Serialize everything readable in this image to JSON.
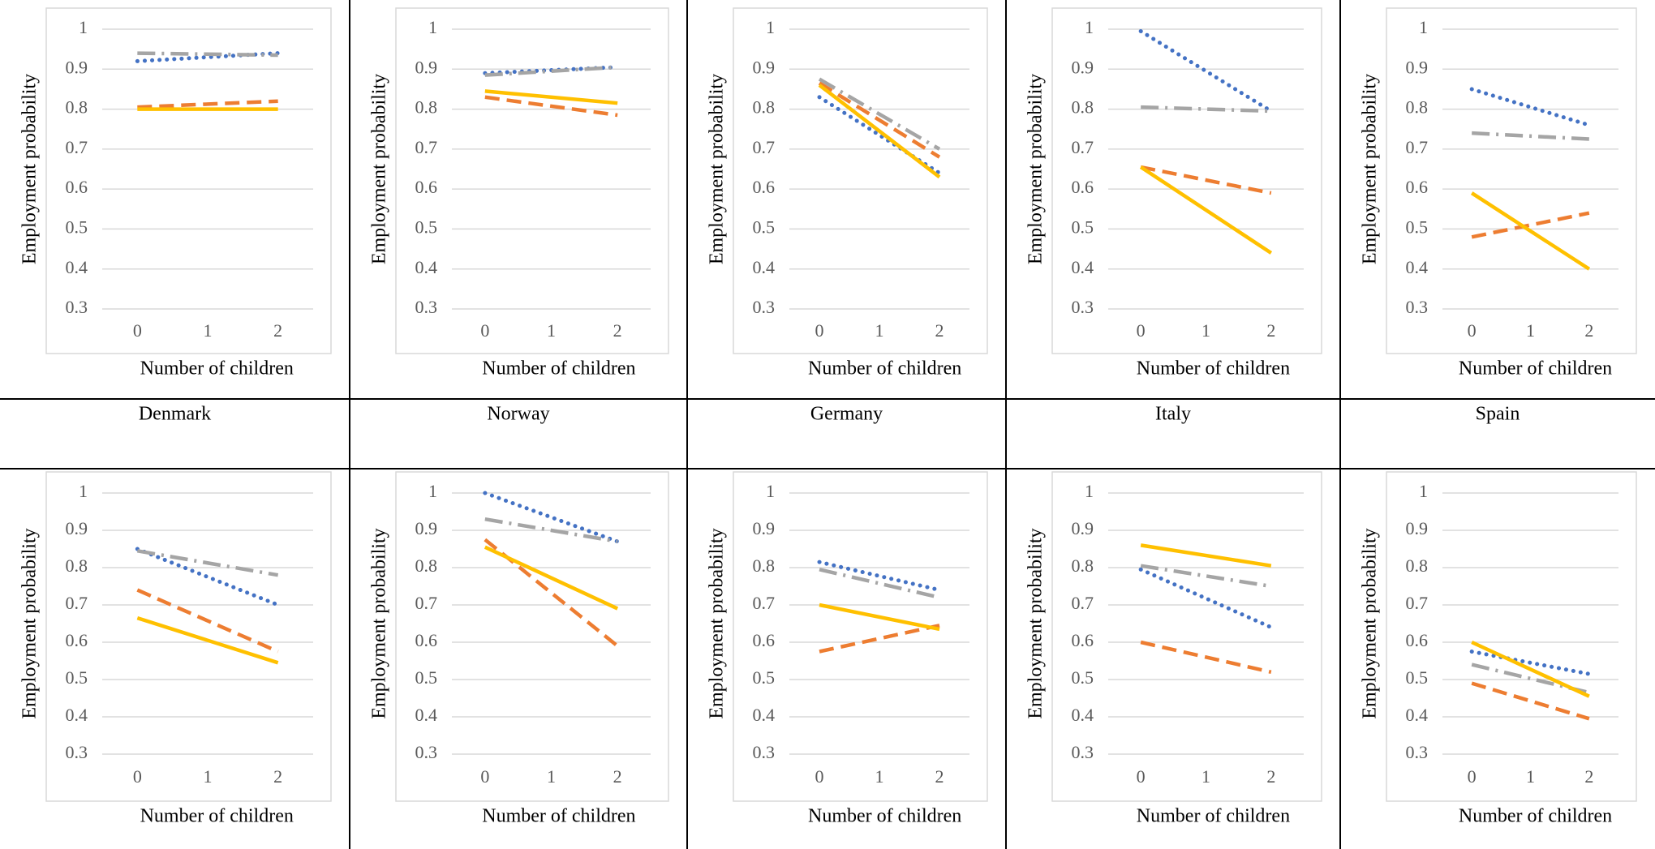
{
  "chart_data": [
    {
      "type": "line",
      "caption": "Denmark",
      "ylabel": "Employment probability",
      "xlabel": "Number of children",
      "x": [
        0,
        2
      ],
      "xlim": [
        -0.5,
        2.5
      ],
      "xticks": [
        0,
        1,
        2
      ],
      "ylim": [
        0.3,
        1
      ],
      "yticks": [
        0.3,
        0.4,
        0.5,
        0.6,
        0.7,
        0.8,
        0.9,
        1
      ],
      "grid": true,
      "series": [
        {
          "color": "#4472c4",
          "style": "dotted",
          "values": [
            0.92,
            0.94
          ]
        },
        {
          "color": "#a5a5a5",
          "style": "dashdot",
          "values": [
            0.94,
            0.935
          ]
        },
        {
          "color": "#ed7d31",
          "style": "dashed",
          "values": [
            0.805,
            0.82
          ]
        },
        {
          "color": "#ffc000",
          "style": "solid",
          "values": [
            0.8,
            0.8
          ]
        }
      ]
    },
    {
      "type": "line",
      "caption": "Norway",
      "ylabel": "Employment probability",
      "xlabel": "Number of children",
      "x": [
        0,
        2
      ],
      "xlim": [
        -0.5,
        2.5
      ],
      "xticks": [
        0,
        1,
        2
      ],
      "ylim": [
        0.3,
        1
      ],
      "yticks": [
        0.3,
        0.4,
        0.5,
        0.6,
        0.7,
        0.8,
        0.9,
        1
      ],
      "grid": true,
      "series": [
        {
          "color": "#4472c4",
          "style": "dotted",
          "values": [
            0.89,
            0.905
          ]
        },
        {
          "color": "#a5a5a5",
          "style": "dashdot",
          "values": [
            0.885,
            0.905
          ]
        },
        {
          "color": "#ed7d31",
          "style": "dashed",
          "values": [
            0.83,
            0.785
          ]
        },
        {
          "color": "#ffc000",
          "style": "solid",
          "values": [
            0.845,
            0.815
          ]
        }
      ]
    },
    {
      "type": "line",
      "caption": "Germany",
      "ylabel": "Employment probability",
      "xlabel": "Number of children",
      "x": [
        0,
        2
      ],
      "xlim": [
        -0.5,
        2.5
      ],
      "xticks": [
        0,
        1,
        2
      ],
      "ylim": [
        0.3,
        1
      ],
      "yticks": [
        0.3,
        0.4,
        0.5,
        0.6,
        0.7,
        0.8,
        0.9,
        1
      ],
      "grid": true,
      "series": [
        {
          "color": "#4472c4",
          "style": "dotted",
          "values": [
            0.83,
            0.64
          ]
        },
        {
          "color": "#a5a5a5",
          "style": "dashdot",
          "values": [
            0.875,
            0.7
          ]
        },
        {
          "color": "#ed7d31",
          "style": "dashed",
          "values": [
            0.865,
            0.68
          ]
        },
        {
          "color": "#ffc000",
          "style": "solid",
          "values": [
            0.86,
            0.63
          ]
        }
      ]
    },
    {
      "type": "line",
      "caption": "Italy",
      "ylabel": "Employment probability",
      "xlabel": "Number of children",
      "x": [
        0,
        2
      ],
      "xlim": [
        -0.5,
        2.5
      ],
      "xticks": [
        0,
        1,
        2
      ],
      "ylim": [
        0.3,
        1
      ],
      "yticks": [
        0.3,
        0.4,
        0.5,
        0.6,
        0.7,
        0.8,
        0.9,
        1
      ],
      "grid": true,
      "series": [
        {
          "color": "#4472c4",
          "style": "dotted",
          "values": [
            0.995,
            0.795
          ]
        },
        {
          "color": "#a5a5a5",
          "style": "dashdot",
          "values": [
            0.805,
            0.795
          ]
        },
        {
          "color": "#ed7d31",
          "style": "dashed",
          "values": [
            0.655,
            0.59
          ]
        },
        {
          "color": "#ffc000",
          "style": "solid",
          "values": [
            0.655,
            0.44
          ]
        }
      ]
    },
    {
      "type": "line",
      "caption": "Spain",
      "ylabel": "Employment probability",
      "xlabel": "Number of children",
      "x": [
        0,
        2
      ],
      "xlim": [
        -0.5,
        2.5
      ],
      "xticks": [
        0,
        1,
        2
      ],
      "ylim": [
        0.3,
        1
      ],
      "yticks": [
        0.3,
        0.4,
        0.5,
        0.6,
        0.7,
        0.8,
        0.9,
        1
      ],
      "grid": true,
      "series": [
        {
          "color": "#4472c4",
          "style": "dotted",
          "values": [
            0.85,
            0.76
          ]
        },
        {
          "color": "#a5a5a5",
          "style": "dashdot",
          "values": [
            0.74,
            0.725
          ]
        },
        {
          "color": "#ed7d31",
          "style": "dashed",
          "values": [
            0.48,
            0.54
          ]
        },
        {
          "color": "#ffc000",
          "style": "solid",
          "values": [
            0.59,
            0.4
          ]
        }
      ]
    },
    {
      "type": "line",
      "ylabel": "Employment probability",
      "xlabel": "Number of children",
      "x": [
        0,
        2
      ],
      "xlim": [
        -0.5,
        2.5
      ],
      "xticks": [
        0,
        1,
        2
      ],
      "ylim": [
        0.3,
        1
      ],
      "yticks": [
        0.3,
        0.4,
        0.5,
        0.6,
        0.7,
        0.8,
        0.9,
        1
      ],
      "grid": true,
      "series": [
        {
          "color": "#4472c4",
          "style": "dotted",
          "values": [
            0.85,
            0.7
          ]
        },
        {
          "color": "#a5a5a5",
          "style": "dashdot",
          "values": [
            0.845,
            0.78
          ]
        },
        {
          "color": "#ed7d31",
          "style": "dashed",
          "values": [
            0.74,
            0.575
          ]
        },
        {
          "color": "#ffc000",
          "style": "solid",
          "values": [
            0.665,
            0.545
          ]
        }
      ]
    },
    {
      "type": "line",
      "ylabel": "Employment probability",
      "xlabel": "Number of children",
      "x": [
        0,
        2
      ],
      "xlim": [
        -0.5,
        2.5
      ],
      "xticks": [
        0,
        1,
        2
      ],
      "ylim": [
        0.3,
        1
      ],
      "yticks": [
        0.3,
        0.4,
        0.5,
        0.6,
        0.7,
        0.8,
        0.9,
        1
      ],
      "grid": true,
      "series": [
        {
          "color": "#4472c4",
          "style": "dotted",
          "values": [
            1.0,
            0.87
          ]
        },
        {
          "color": "#a5a5a5",
          "style": "dashdot",
          "values": [
            0.93,
            0.87
          ]
        },
        {
          "color": "#ed7d31",
          "style": "dashed",
          "values": [
            0.875,
            0.59
          ]
        },
        {
          "color": "#ffc000",
          "style": "solid",
          "values": [
            0.855,
            0.69
          ]
        }
      ]
    },
    {
      "type": "line",
      "ylabel": "Employment probability",
      "xlabel": "Number of children",
      "x": [
        0,
        2
      ],
      "xlim": [
        -0.5,
        2.5
      ],
      "xticks": [
        0,
        1,
        2
      ],
      "ylim": [
        0.3,
        1
      ],
      "yticks": [
        0.3,
        0.4,
        0.5,
        0.6,
        0.7,
        0.8,
        0.9,
        1
      ],
      "grid": true,
      "series": [
        {
          "color": "#4472c4",
          "style": "dotted",
          "values": [
            0.815,
            0.74
          ]
        },
        {
          "color": "#a5a5a5",
          "style": "dashdot",
          "values": [
            0.795,
            0.72
          ]
        },
        {
          "color": "#ed7d31",
          "style": "dashed",
          "values": [
            0.575,
            0.645
          ]
        },
        {
          "color": "#ffc000",
          "style": "solid",
          "values": [
            0.7,
            0.635
          ]
        }
      ]
    },
    {
      "type": "line",
      "ylabel": "Employment probability",
      "xlabel": "Number of children",
      "x": [
        0,
        2
      ],
      "xlim": [
        -0.5,
        2.5
      ],
      "xticks": [
        0,
        1,
        2
      ],
      "ylim": [
        0.3,
        1
      ],
      "yticks": [
        0.3,
        0.4,
        0.5,
        0.6,
        0.7,
        0.8,
        0.9,
        1
      ],
      "grid": true,
      "series": [
        {
          "color": "#4472c4",
          "style": "dotted",
          "values": [
            0.795,
            0.64
          ]
        },
        {
          "color": "#a5a5a5",
          "style": "dashdot",
          "values": [
            0.805,
            0.75
          ]
        },
        {
          "color": "#ed7d31",
          "style": "dashed",
          "values": [
            0.6,
            0.52
          ]
        },
        {
          "color": "#ffc000",
          "style": "solid",
          "values": [
            0.86,
            0.805
          ]
        }
      ]
    },
    {
      "type": "line",
      "ylabel": "Employment probability",
      "xlabel": "Number of children",
      "x": [
        0,
        2
      ],
      "xlim": [
        -0.5,
        2.5
      ],
      "xticks": [
        0,
        1,
        2
      ],
      "ylim": [
        0.3,
        1
      ],
      "yticks": [
        0.3,
        0.4,
        0.5,
        0.6,
        0.7,
        0.8,
        0.9,
        1
      ],
      "grid": true,
      "series": [
        {
          "color": "#4472c4",
          "style": "dotted",
          "values": [
            0.575,
            0.515
          ]
        },
        {
          "color": "#a5a5a5",
          "style": "dashdot",
          "values": [
            0.54,
            0.465
          ]
        },
        {
          "color": "#ed7d31",
          "style": "dashed",
          "values": [
            0.49,
            0.395
          ]
        },
        {
          "color": "#ffc000",
          "style": "solid",
          "values": [
            0.6,
            0.455
          ]
        }
      ]
    }
  ]
}
